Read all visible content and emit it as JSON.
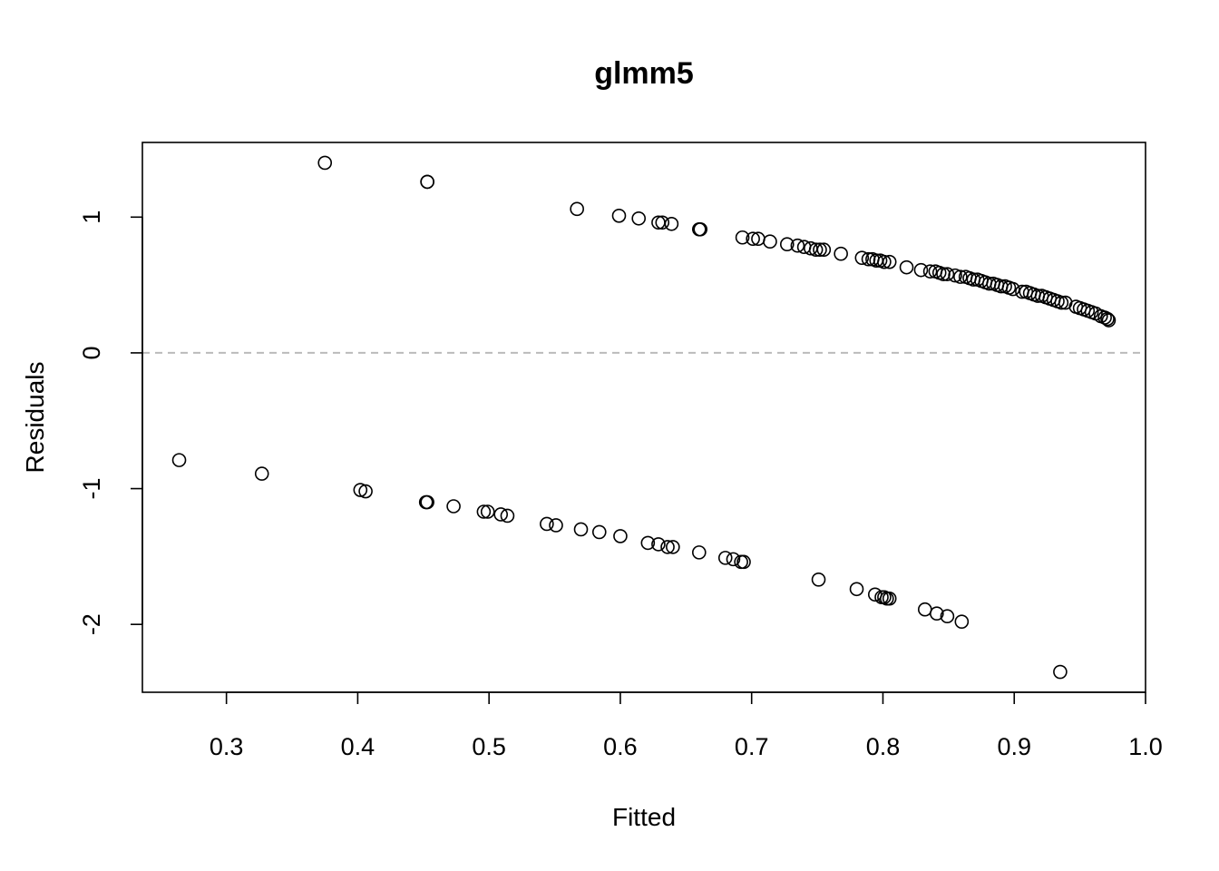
{
  "chart_data": {
    "type": "scatter",
    "title": "glmm5",
    "xlabel": "Fitted",
    "ylabel": "Residuals",
    "xlim": [
      0.236,
      1.0
    ],
    "ylim": [
      -2.5,
      1.55
    ],
    "xticks": [
      0.3,
      0.4,
      0.5,
      0.6,
      0.7,
      0.8,
      0.9,
      1.0
    ],
    "xtick_labels": [
      "0.3",
      "0.4",
      "0.5",
      "0.6",
      "0.7",
      "0.8",
      "0.9",
      "1.0"
    ],
    "yticks": [
      -2,
      -1,
      0,
      1
    ],
    "ytick_labels": [
      "-2",
      "-1",
      "0",
      "1"
    ],
    "reference_line": {
      "y": 0,
      "style": "dashed",
      "color": "#bbbbbb"
    },
    "marker": {
      "shape": "open-circle",
      "color": "#000000"
    },
    "grid": false,
    "legend": "none",
    "series": [
      {
        "x": [
          0.375,
          0.453,
          0.453,
          0.567,
          0.599,
          0.614,
          0.629,
          0.632,
          0.639,
          0.66,
          0.661,
          0.693,
          0.701,
          0.705,
          0.714,
          0.727,
          0.735,
          0.74,
          0.745,
          0.749,
          0.752,
          0.755,
          0.768,
          0.784,
          0.789,
          0.792,
          0.795,
          0.798,
          0.801,
          0.805,
          0.818,
          0.829,
          0.836,
          0.84,
          0.843,
          0.846,
          0.849,
          0.855,
          0.859,
          0.863,
          0.866,
          0.869,
          0.872,
          0.875,
          0.878,
          0.881,
          0.884,
          0.887,
          0.89,
          0.893,
          0.896,
          0.899,
          0.906,
          0.909,
          0.912,
          0.915,
          0.918,
          0.921,
          0.924,
          0.927,
          0.93,
          0.933,
          0.936,
          0.939,
          0.947,
          0.95,
          0.953,
          0.956,
          0.959,
          0.962,
          0.966,
          0.969,
          0.971,
          0.972
        ],
        "y": [
          1.4,
          1.26,
          1.26,
          1.06,
          1.01,
          0.99,
          0.96,
          0.96,
          0.95,
          0.91,
          0.91,
          0.85,
          0.84,
          0.84,
          0.82,
          0.8,
          0.79,
          0.78,
          0.77,
          0.76,
          0.76,
          0.76,
          0.73,
          0.7,
          0.69,
          0.69,
          0.68,
          0.68,
          0.67,
          0.67,
          0.63,
          0.61,
          0.6,
          0.6,
          0.59,
          0.58,
          0.58,
          0.57,
          0.56,
          0.56,
          0.55,
          0.54,
          0.54,
          0.53,
          0.52,
          0.51,
          0.51,
          0.5,
          0.49,
          0.49,
          0.48,
          0.47,
          0.45,
          0.45,
          0.44,
          0.43,
          0.42,
          0.42,
          0.41,
          0.4,
          0.39,
          0.38,
          0.37,
          0.37,
          0.34,
          0.33,
          0.32,
          0.31,
          0.3,
          0.29,
          0.27,
          0.26,
          0.25,
          0.24
        ]
      },
      {
        "x": [
          0.264,
          0.327,
          0.402,
          0.406,
          0.452,
          0.453,
          0.473,
          0.496,
          0.499,
          0.509,
          0.514,
          0.544,
          0.551,
          0.57,
          0.584,
          0.6,
          0.621,
          0.629,
          0.636,
          0.64,
          0.66,
          0.68,
          0.686,
          0.692,
          0.694,
          0.751,
          0.78,
          0.794,
          0.799,
          0.801,
          0.803,
          0.805,
          0.832,
          0.841,
          0.849,
          0.86,
          0.935
        ],
        "y": [
          -0.79,
          -0.89,
          -1.01,
          -1.02,
          -1.1,
          -1.1,
          -1.13,
          -1.17,
          -1.17,
          -1.19,
          -1.2,
          -1.26,
          -1.27,
          -1.3,
          -1.32,
          -1.35,
          -1.4,
          -1.41,
          -1.43,
          -1.43,
          -1.47,
          -1.51,
          -1.52,
          -1.54,
          -1.54,
          -1.67,
          -1.74,
          -1.78,
          -1.8,
          -1.8,
          -1.81,
          -1.81,
          -1.89,
          -1.92,
          -1.94,
          -1.98,
          -2.35
        ]
      }
    ]
  }
}
